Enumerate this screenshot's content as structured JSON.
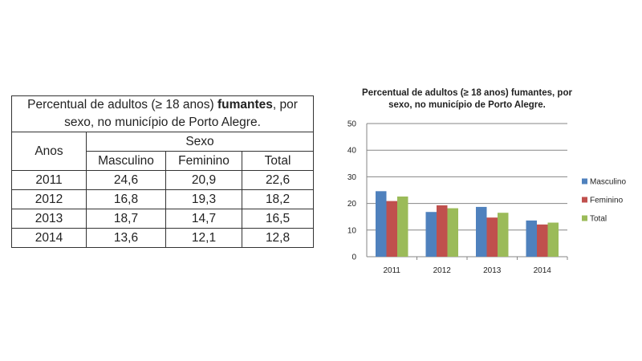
{
  "table": {
    "title_pre": "Percentual de adultos (≥ 18 anos) ",
    "title_bold": "fumantes",
    "title_post": ", por sexo, no município de Porto Alegre.",
    "header_anos": "Anos",
    "header_sexo": "Sexo",
    "columns": [
      "Masculino",
      "Feminino",
      "Total"
    ],
    "rows": [
      {
        "ano": "2011",
        "masculino": "24,6",
        "feminino": "20,9",
        "total": "22,6"
      },
      {
        "ano": "2012",
        "masculino": "16,8",
        "feminino": "19,3",
        "total": "18,2"
      },
      {
        "ano": "2013",
        "masculino": "18,7",
        "feminino": "14,7",
        "total": "16,5"
      },
      {
        "ano": "2014",
        "masculino": "13,6",
        "feminino": "12,1",
        "total": "12,8"
      }
    ]
  },
  "chart_data": {
    "type": "bar",
    "title_lines": [
      "Percentual de adultos (≥ 18  anos) fumantes, por",
      "sexo, no município de Porto Alegre."
    ],
    "categories": [
      "2011",
      "2012",
      "2013",
      "2014"
    ],
    "series": [
      {
        "name": "Masculino",
        "color": "#4f81bd",
        "values": [
          24.6,
          16.8,
          18.7,
          13.6
        ]
      },
      {
        "name": "Feminino",
        "color": "#c0504d",
        "values": [
          20.9,
          19.3,
          14.7,
          12.1
        ]
      },
      {
        "name": "Total",
        "color": "#9bbb59",
        "values": [
          22.6,
          18.2,
          16.5,
          12.8
        ]
      }
    ],
    "ylim": [
      0,
      50
    ],
    "yticks": [
      0,
      10,
      20,
      30,
      40,
      50
    ],
    "grid": true,
    "legend_position": "right"
  }
}
